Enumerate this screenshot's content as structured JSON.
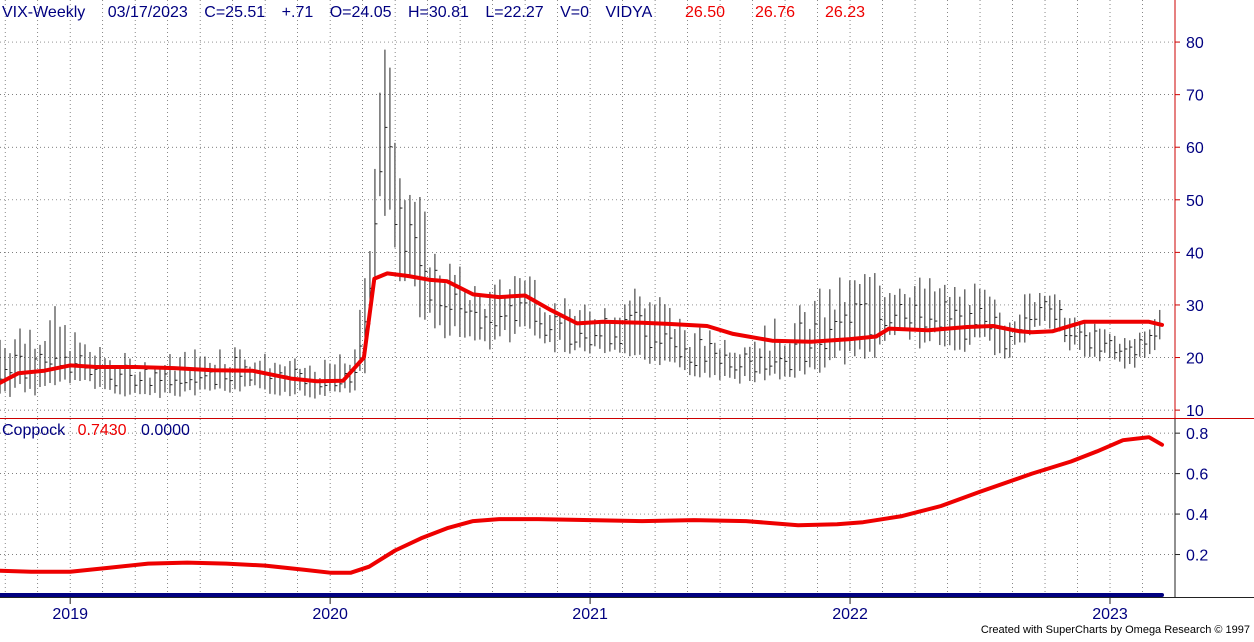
{
  "header": {
    "symbol": "VIX-Weekly",
    "date": "03/17/2023",
    "close": "C=25.51",
    "change": "+.71",
    "open": "O=24.05",
    "high": "H=30.81",
    "low": "L=22.27",
    "volume": "V=0",
    "indicator": "VIDYA",
    "vidya_values": [
      "26.50",
      "26.76",
      "26.23"
    ]
  },
  "coppock_header": {
    "name": "Coppock",
    "value": "0.7430",
    "zero": "0.0000"
  },
  "credit": "Created with SuperCharts by Omega Research © 1997",
  "colors": {
    "text_dark": "#000080",
    "indicator_red": "#ee0000",
    "zero_line": "#000080",
    "axis_red": "#cc0000",
    "bars": "#222222",
    "grid": "#555555"
  },
  "chart_data": [
    {
      "type": "ohlc",
      "title": "VIX-Weekly",
      "x_tick_labels": [
        "2019",
        "2020",
        "2021",
        "2022",
        "2023"
      ],
      "x_tick_dates": [
        2019.0,
        2020.0,
        2021.0,
        2022.0,
        2023.0
      ],
      "xlim": [
        2018.73,
        2023.25
      ],
      "y_ticks": [
        10,
        20,
        30,
        40,
        50,
        60,
        70,
        80
      ],
      "y_tick_labels": [
        "10",
        "20",
        "30",
        "40",
        "50",
        "60",
        "70",
        "80"
      ],
      "ylim": [
        8.5,
        88
      ],
      "grid": true,
      "bars_anchor": [
        [
          2018.73,
          16,
          12,
          27
        ],
        [
          2018.95,
          18,
          13,
          30
        ],
        [
          2019.0,
          18,
          15,
          26
        ],
        [
          2019.12,
          16,
          13,
          22
        ],
        [
          2019.3,
          14,
          12,
          20
        ],
        [
          2019.6,
          15,
          13,
          24
        ],
        [
          2019.75,
          16,
          13,
          21
        ],
        [
          2019.95,
          14,
          12,
          19
        ],
        [
          2020.1,
          16,
          13,
          22
        ],
        [
          2020.15,
          30,
          18,
          50
        ],
        [
          2020.2,
          65,
          40,
          85
        ],
        [
          2020.27,
          45,
          32,
          65
        ],
        [
          2020.4,
          30,
          24,
          42
        ],
        [
          2020.6,
          26,
          21,
          33
        ],
        [
          2020.75,
          28,
          24,
          40
        ],
        [
          2020.85,
          25,
          21,
          32
        ],
        [
          2021.0,
          24,
          20,
          30
        ],
        [
          2021.2,
          22,
          19,
          37
        ],
        [
          2021.4,
          19,
          16,
          26
        ],
        [
          2021.55,
          18,
          15,
          25
        ],
        [
          2021.75,
          18,
          15,
          28
        ],
        [
          2021.9,
          22,
          17,
          34
        ],
        [
          2022.05,
          25,
          19,
          38
        ],
        [
          2022.2,
          28,
          22,
          37
        ],
        [
          2022.35,
          27,
          21,
          35
        ],
        [
          2022.5,
          27,
          21,
          34
        ],
        [
          2022.6,
          23,
          19,
          30
        ],
        [
          2022.75,
          30,
          24,
          35
        ],
        [
          2022.85,
          25,
          20,
          28
        ],
        [
          2022.98,
          22,
          19,
          26
        ],
        [
          2023.08,
          20,
          17,
          24
        ],
        [
          2023.2,
          25.51,
          22.27,
          30.81
        ]
      ],
      "series": [
        {
          "name": "VIDYA",
          "x": [
            2018.73,
            2018.8,
            2018.9,
            2019.0,
            2019.1,
            2019.25,
            2019.4,
            2019.55,
            2019.7,
            2019.85,
            2019.95,
            2020.05,
            2020.13,
            2020.17,
            2020.22,
            2020.3,
            2020.38,
            2020.45,
            2020.55,
            2020.65,
            2020.75,
            2020.85,
            2020.95,
            2021.05,
            2021.2,
            2021.3,
            2021.45,
            2021.55,
            2021.7,
            2021.85,
            2022.0,
            2022.1,
            2022.15,
            2022.3,
            2022.45,
            2022.55,
            2022.65,
            2022.7,
            2022.78,
            2022.9,
            2023.05,
            2023.15,
            2023.2
          ],
          "values": [
            15.2,
            17.0,
            17.5,
            18.5,
            18.2,
            18.2,
            18.0,
            17.6,
            17.5,
            16.0,
            15.5,
            15.6,
            20.0,
            35.0,
            36.0,
            35.5,
            34.8,
            34.5,
            32.0,
            31.5,
            31.8,
            29.0,
            26.5,
            26.8,
            26.6,
            26.4,
            26.0,
            24.5,
            23.2,
            23.0,
            23.5,
            24.0,
            25.5,
            25.2,
            25.8,
            26.0,
            25.0,
            24.8,
            25.0,
            26.8,
            26.8,
            26.8,
            26.2
          ]
        }
      ]
    },
    {
      "type": "line",
      "title": "Coppock",
      "xlim": [
        2018.73,
        2023.25
      ],
      "y_ticks": [
        0.2,
        0.4,
        0.6,
        0.8
      ],
      "y_tick_labels": [
        "0.2",
        "0.4",
        "0.6",
        "0.8"
      ],
      "ylim": [
        -0.01,
        0.87
      ],
      "grid": true,
      "series": [
        {
          "name": "Coppock",
          "x": [
            2018.73,
            2018.85,
            2019.0,
            2019.15,
            2019.3,
            2019.45,
            2019.6,
            2019.75,
            2019.9,
            2020.0,
            2020.08,
            2020.15,
            2020.25,
            2020.35,
            2020.45,
            2020.55,
            2020.65,
            2020.8,
            2021.0,
            2021.2,
            2021.4,
            2021.6,
            2021.8,
            2021.95,
            2022.05,
            2022.2,
            2022.35,
            2022.5,
            2022.7,
            2022.85,
            2022.95,
            2023.05,
            2023.15,
            2023.2
          ],
          "values": [
            0.12,
            0.115,
            0.115,
            0.135,
            0.155,
            0.16,
            0.155,
            0.145,
            0.125,
            0.11,
            0.11,
            0.14,
            0.22,
            0.28,
            0.33,
            0.365,
            0.375,
            0.375,
            0.37,
            0.365,
            0.37,
            0.365,
            0.345,
            0.35,
            0.36,
            0.39,
            0.44,
            0.51,
            0.6,
            0.66,
            0.71,
            0.765,
            0.78,
            0.743
          ]
        },
        {
          "name": "Zero",
          "x": [
            2018.73,
            2023.2
          ],
          "values": [
            0.0,
            0.0
          ]
        }
      ]
    }
  ]
}
